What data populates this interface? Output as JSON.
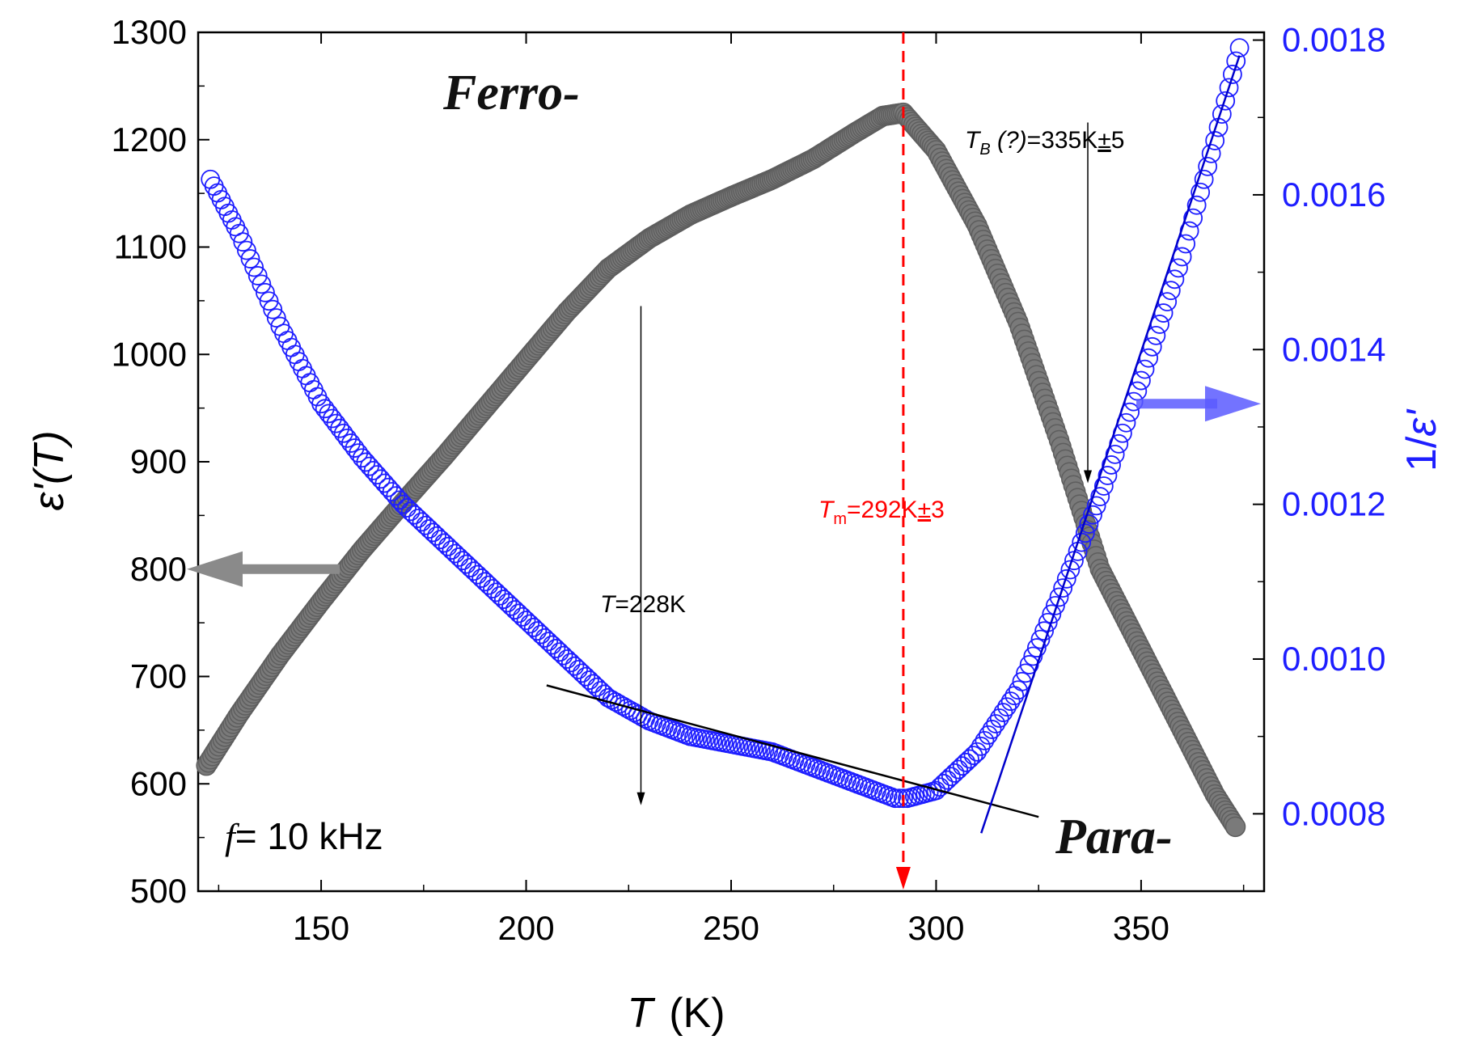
{
  "chart_data": {
    "type": "scatter",
    "x_axis": {
      "label_var": "T",
      "label_unit": "(K)",
      "range": [
        120,
        380
      ],
      "ticks": [
        150,
        200,
        250,
        300,
        350
      ],
      "tick_labels": [
        "150",
        "200",
        "250",
        "300",
        "350"
      ]
    },
    "y_left": {
      "label_var": "ε'",
      "label_arg": "(T)",
      "range": [
        500,
        1300
      ],
      "ticks": [
        500,
        600,
        700,
        800,
        900,
        1000,
        1100,
        1200,
        1300
      ],
      "tick_labels": [
        "500",
        "600",
        "700",
        "800",
        "900",
        "1000",
        "1100",
        "1200",
        "1300"
      ]
    },
    "y_right": {
      "label_prefix": "1/",
      "label_var": "ε'",
      "range": [
        0.0007,
        0.00181
      ],
      "ticks": [
        0.0008,
        0.001,
        0.0012,
        0.0014,
        0.0016,
        0.0018
      ],
      "tick_labels": [
        "0.0008",
        "0.0010",
        "0.0012",
        "0.0014",
        "0.0016",
        "0.0018"
      ]
    },
    "series": [
      {
        "name": "ε'(T)",
        "axis": "left",
        "color": "#7a7a7a",
        "marker": "filled-circle",
        "x": [
          122,
          130,
          140,
          150,
          160,
          170,
          180,
          190,
          200,
          210,
          220,
          230,
          240,
          250,
          260,
          270,
          280,
          287,
          292,
          300,
          310,
          320,
          330,
          340,
          350,
          360,
          368,
          373
        ],
        "y": [
          617,
          665,
          720,
          770,
          818,
          862,
          905,
          950,
          995,
          1040,
          1080,
          1108,
          1130,
          1147,
          1163,
          1182,
          1206,
          1222,
          1225,
          1190,
          1120,
          1030,
          920,
          800,
          725,
          650,
          590,
          560
        ]
      },
      {
        "name": "1/ε'",
        "axis": "right",
        "color": "#1e1eff",
        "marker": "open-circle",
        "x": [
          123,
          130,
          140,
          150,
          160,
          170,
          180,
          190,
          200,
          210,
          220,
          230,
          240,
          250,
          260,
          270,
          280,
          290,
          293,
          300,
          310,
          320,
          330,
          340,
          350,
          360,
          368,
          374
        ],
        "y": [
          0.00162,
          0.00155,
          0.00143,
          0.00133,
          0.00126,
          0.0012,
          0.00115,
          0.0011,
          0.00105,
          0.001,
          0.00095,
          0.00092,
          0.0009,
          0.00089,
          0.00088,
          0.00086,
          0.00084,
          0.00082,
          0.00082,
          0.00083,
          0.00088,
          0.00096,
          0.00108,
          0.00121,
          0.00136,
          0.00152,
          0.00167,
          0.00179
        ]
      }
    ],
    "fit_lines": [
      {
        "color": "#000000",
        "axis": "right",
        "x": [
          205,
          325
        ],
        "y": [
          0.000966,
          0.000796
        ]
      },
      {
        "color": "#0000cc",
        "axis": "right",
        "x": [
          311,
          374
        ],
        "y": [
          0.000775,
          0.00178
        ]
      }
    ],
    "annotations": {
      "tm_line": {
        "x": 292,
        "color": "#ff0000"
      },
      "tm_label": {
        "var": "T",
        "sub": "m",
        "value": "=292K",
        "pm": "±",
        "err": "3"
      },
      "tb_label": {
        "var": "T",
        "sub": "B",
        "q": " (?)",
        "value": "=335K",
        "pm": "±",
        "err": "5"
      },
      "tb_arrow": {
        "x": 337,
        "y_from": 1216,
        "y_to": 880
      },
      "t_label": {
        "var": "T",
        "value": "=228K"
      },
      "t_arrow": {
        "x": 228,
        "y_from": 1045,
        "y_to": 580
      },
      "ferro": "Ferro-",
      "para": "Para-",
      "freq_label": {
        "var": "f",
        "value": "= 10 kHz"
      },
      "left_arrow_color": "#8a8a8a",
      "right_arrow_color": "#5a5aff"
    }
  }
}
